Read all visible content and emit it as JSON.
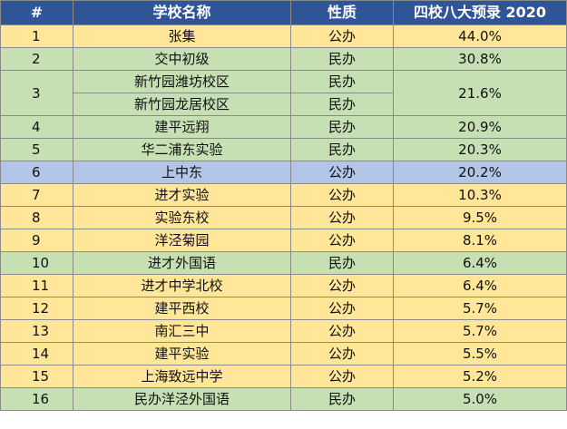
{
  "header": {
    "rank": "#",
    "school": "学校名称",
    "type": "性质",
    "rate": "四校八大预录 2020"
  },
  "rows": [
    {
      "rank": "1",
      "school": "张集",
      "type": "公办",
      "rate": "44.0%",
      "color": "#ffe699"
    },
    {
      "rank": "2",
      "school": "交中初级",
      "type": "民办",
      "rate": "30.8%",
      "color": "#c6e0b4"
    },
    {
      "rank": "3",
      "school": "新竹园潍坊校区",
      "type": "民办",
      "rate": "21.6%",
      "color": "#c6e0b4"
    },
    {
      "rank": "",
      "school": "新竹园龙居校区",
      "type": "民办",
      "rate": "",
      "color": "#c6e0b4"
    },
    {
      "rank": "4",
      "school": "建平远翔",
      "type": "民办",
      "rate": "20.9%",
      "color": "#c6e0b4"
    },
    {
      "rank": "5",
      "school": "华二浦东实验",
      "type": "民办",
      "rate": "20.3%",
      "color": "#c6e0b4"
    },
    {
      "rank": "6",
      "school": "上中东",
      "type": "公办",
      "rate": "20.2%",
      "color": "#b4c6e7"
    },
    {
      "rank": "7",
      "school": "进才实验",
      "type": "公办",
      "rate": "10.3%",
      "color": "#ffe699"
    },
    {
      "rank": "8",
      "school": "实验东校",
      "type": "公办",
      "rate": "9.5%",
      "color": "#ffe699"
    },
    {
      "rank": "9",
      "school": "洋泾菊园",
      "type": "公办",
      "rate": "8.1%",
      "color": "#ffe699"
    },
    {
      "rank": "10",
      "school": "进才外国语",
      "type": "民办",
      "rate": "6.4%",
      "color": "#c6e0b4"
    },
    {
      "rank": "11",
      "school": "进才中学北校",
      "type": "公办",
      "rate": "6.4%",
      "color": "#ffe699"
    },
    {
      "rank": "12",
      "school": "建平西校",
      "type": "公办",
      "rate": "5.7%",
      "color": "#ffe699"
    },
    {
      "rank": "13",
      "school": "南汇三中",
      "type": "公办",
      "rate": "5.7%",
      "color": "#ffe699"
    },
    {
      "rank": "14",
      "school": "建平实验",
      "type": "公办",
      "rate": "5.5%",
      "color": "#ffe699"
    },
    {
      "rank": "15",
      "school": "上海致远中学",
      "type": "公办",
      "rate": "5.2%",
      "color": "#ffe699"
    },
    {
      "rank": "16",
      "school": "民办洋泾外国语",
      "type": "民办",
      "rate": "5.0%",
      "color": "#c6e0b4"
    }
  ]
}
